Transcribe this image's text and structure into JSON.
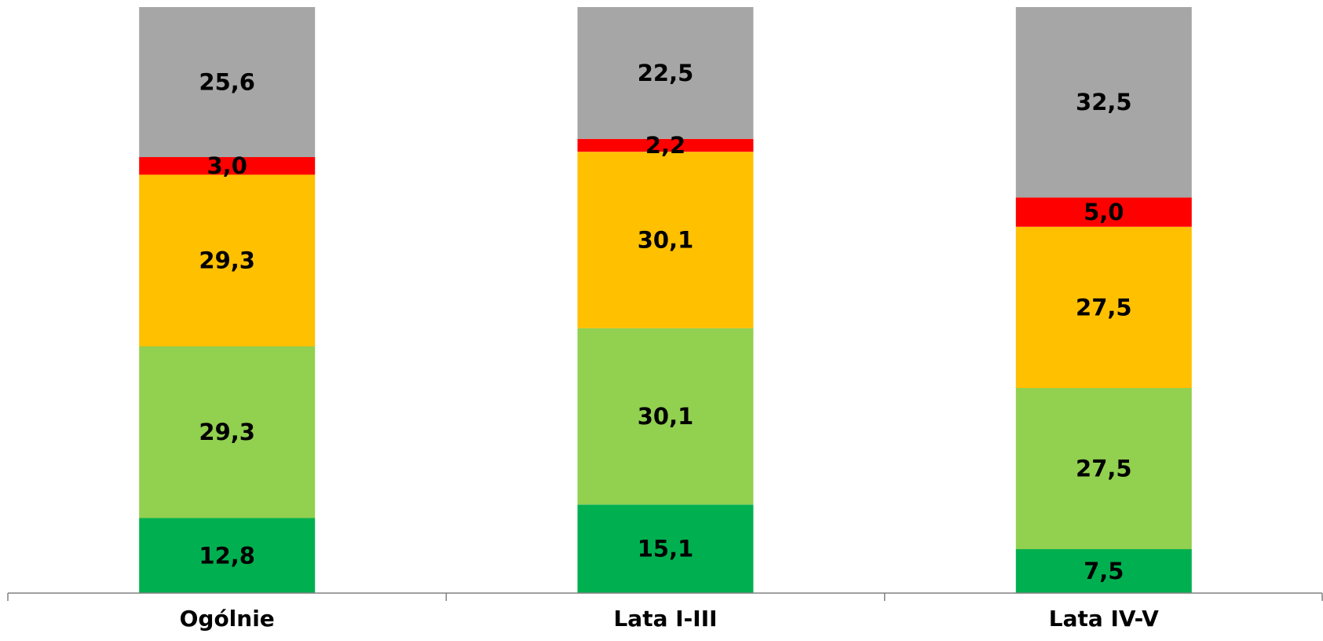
{
  "chart_data": {
    "type": "bar",
    "stacked": true,
    "categories": [
      "Ogólnie",
      "Lata I-III",
      "Lata IV-V"
    ],
    "series": [
      {
        "color": "#00b050",
        "values": [
          12.8,
          15.1,
          7.5
        ],
        "labels": [
          "12,8",
          "15,1",
          "7,5"
        ]
      },
      {
        "color": "#92d050",
        "values": [
          29.3,
          30.1,
          27.5
        ],
        "labels": [
          "29,3",
          "30,1",
          "27,5"
        ]
      },
      {
        "color": "#ffc000",
        "values": [
          29.3,
          30.1,
          27.5
        ],
        "labels": [
          "29,3",
          "30,1",
          "27,5"
        ]
      },
      {
        "color": "#ff0000",
        "values": [
          3.0,
          2.2,
          5.0
        ],
        "labels": [
          "3,0",
          "2,2",
          "5,0"
        ]
      },
      {
        "color": "#a6a6a6",
        "values": [
          25.6,
          22.5,
          32.5
        ],
        "labels": [
          "25,6",
          "22,5",
          "32,5"
        ]
      }
    ],
    "ylim": [
      0,
      100
    ],
    "grid": false,
    "legend": "none",
    "title": "",
    "xlabel": "",
    "ylabel": ""
  }
}
